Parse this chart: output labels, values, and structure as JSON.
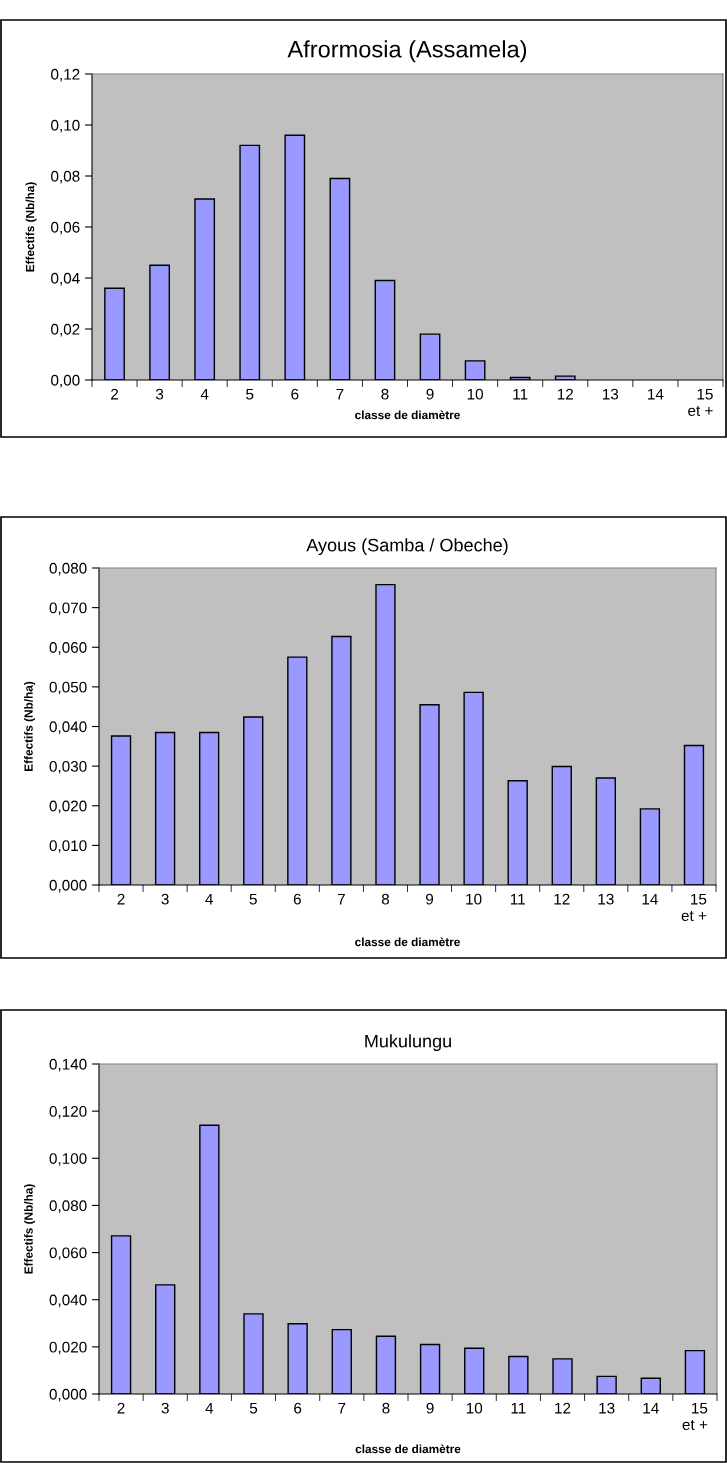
{
  "chart_data": [
    {
      "type": "bar",
      "title": "Afrormosia (Assamela)",
      "xlabel": "classe de diamètre",
      "ylabel": "Effectifs (Nb/ha)",
      "categories": [
        "2",
        "3",
        "4",
        "5",
        "6",
        "7",
        "8",
        "9",
        "10",
        "11",
        "12",
        "13",
        "14",
        "15\net +"
      ],
      "values": [
        0.036,
        0.045,
        0.071,
        0.092,
        0.096,
        0.079,
        0.039,
        0.018,
        0.0075,
        0.001,
        0.0015,
        0,
        0,
        0
      ],
      "color": "#9999ff",
      "ylim": [
        0,
        0.12
      ],
      "yticks": [
        {
          "value": 0,
          "label": "0,00"
        },
        {
          "value": 0.02,
          "label": "0,02"
        },
        {
          "value": 0.04,
          "label": "0,04"
        },
        {
          "value": 0.06,
          "label": "0,06"
        },
        {
          "value": 0.08,
          "label": "0,08"
        },
        {
          "value": 0.1,
          "label": "0,10"
        },
        {
          "value": 0.12,
          "label": "0,12"
        }
      ],
      "grid": false,
      "legend": false
    },
    {
      "type": "bar",
      "title": "Ayous (Samba / Obeche)",
      "xlabel": "classe de diamètre",
      "ylabel": "Effectifs (Nb/ha)",
      "categories": [
        "2",
        "3",
        "4",
        "5",
        "6",
        "7",
        "8",
        "9",
        "10",
        "11",
        "12",
        "13",
        "14",
        "15\net +"
      ],
      "values": [
        0.0376,
        0.0385,
        0.0385,
        0.0424,
        0.0575,
        0.0627,
        0.0758,
        0.0455,
        0.0486,
        0.0263,
        0.0299,
        0.027,
        0.0192,
        0.0352
      ],
      "color": "#9999ff",
      "ylim": [
        0,
        0.08
      ],
      "yticks": [
        {
          "value": 0,
          "label": "0,000"
        },
        {
          "value": 0.01,
          "label": "0,010"
        },
        {
          "value": 0.02,
          "label": "0,020"
        },
        {
          "value": 0.03,
          "label": "0,030"
        },
        {
          "value": 0.04,
          "label": "0,040"
        },
        {
          "value": 0.05,
          "label": "0,050"
        },
        {
          "value": 0.06,
          "label": "0,060"
        },
        {
          "value": 0.07,
          "label": "0,070"
        },
        {
          "value": 0.08,
          "label": "0,080"
        }
      ],
      "grid": false,
      "legend": false
    },
    {
      "type": "bar",
      "title": "Mukulungu",
      "xlabel": "classe de diamètre",
      "ylabel": "Effectifs (Nb/ha)",
      "categories": [
        "2",
        "3",
        "4",
        "5",
        "6",
        "7",
        "8",
        "9",
        "10",
        "11",
        "12",
        "13",
        "14",
        "15\net +"
      ],
      "values": [
        0.0671,
        0.0463,
        0.114,
        0.034,
        0.0298,
        0.0273,
        0.0245,
        0.021,
        0.0194,
        0.0159,
        0.0149,
        0.0075,
        0.0067,
        0.0184
      ],
      "color": "#9999ff",
      "ylim": [
        0,
        0.14
      ],
      "yticks": [
        {
          "value": 0,
          "label": "0,000"
        },
        {
          "value": 0.02,
          "label": "0,020"
        },
        {
          "value": 0.04,
          "label": "0,040"
        },
        {
          "value": 0.06,
          "label": "0,060"
        },
        {
          "value": 0.08,
          "label": "0,080"
        },
        {
          "value": 0.1,
          "label": "0,100"
        },
        {
          "value": 0.12,
          "label": "0,120"
        },
        {
          "value": 0.14,
          "label": "0,140"
        }
      ],
      "grid": false,
      "legend": false
    }
  ]
}
